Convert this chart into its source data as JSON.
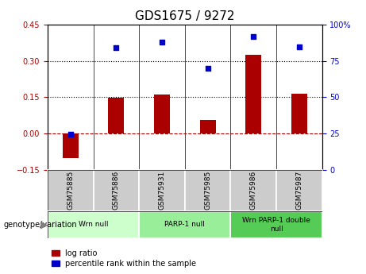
{
  "title": "GDS1675 / 9272",
  "categories": [
    "GSM75885",
    "GSM75886",
    "GSM75931",
    "GSM75985",
    "GSM75986",
    "GSM75987"
  ],
  "log_ratio": [
    -0.1,
    0.148,
    0.16,
    0.055,
    0.325,
    0.165
  ],
  "percentile_rank": [
    24.5,
    84.0,
    88.0,
    70.0,
    92.0,
    84.5
  ],
  "bar_color": "#aa0000",
  "dot_color": "#0000cc",
  "ylim_left": [
    -0.15,
    0.45
  ],
  "ylim_right": [
    0,
    100
  ],
  "yticks_left": [
    -0.15,
    0.0,
    0.15,
    0.3,
    0.45
  ],
  "yticks_right": [
    0,
    25,
    50,
    75,
    100
  ],
  "hlines": [
    0.15,
    0.3
  ],
  "zero_line": 0.0,
  "groups": [
    {
      "label": "Wrn null",
      "start": 0,
      "end": 2,
      "color": "#ccffcc"
    },
    {
      "label": "PARP-1 null",
      "start": 2,
      "end": 4,
      "color": "#99ee99"
    },
    {
      "label": "Wrn PARP-1 double\nnull",
      "start": 4,
      "end": 6,
      "color": "#55cc55"
    }
  ],
  "legend_log_ratio": "log ratio",
  "legend_percentile": "percentile rank within the sample",
  "genotype_label": "genotype/variation",
  "label_bg": "#cccccc",
  "title_fontsize": 11,
  "tick_fontsize": 7,
  "bar_width": 0.35
}
